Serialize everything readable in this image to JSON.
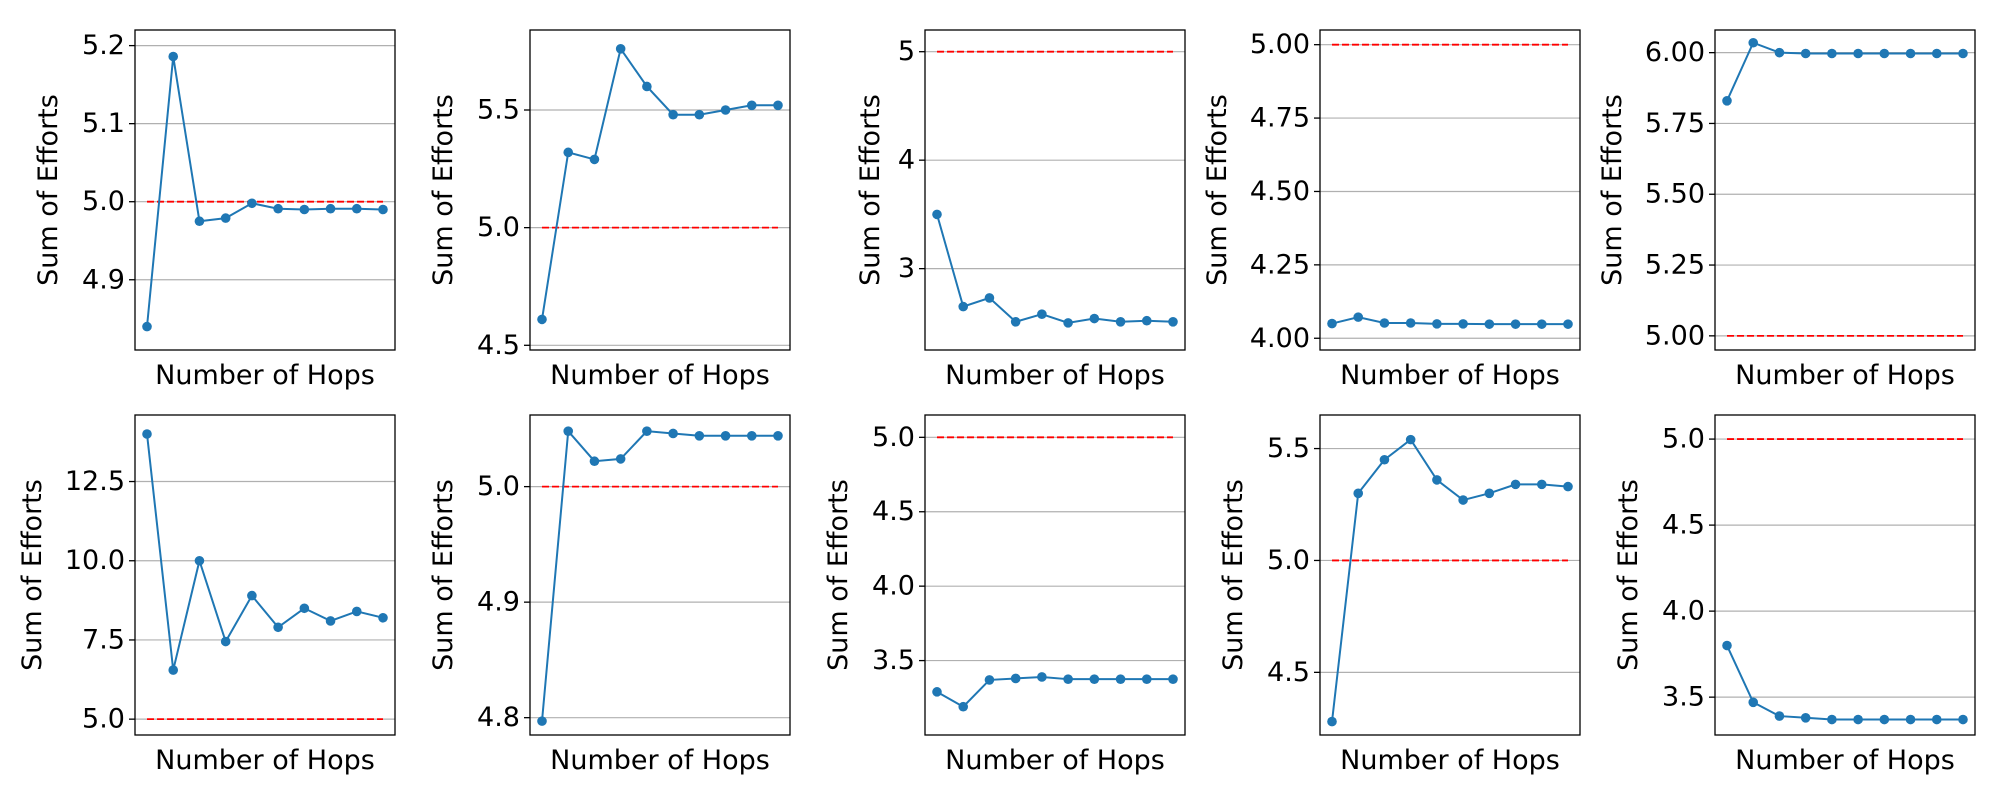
{
  "style": {
    "line_color": "#1f77b4",
    "reference_color": "#ff0000",
    "grid_color": "#b0b0b0",
    "frame_color": "#000000"
  },
  "chart_data": [
    {
      "type": "line",
      "xlabel": "Number of Hops",
      "ylabel": "Sum of Efforts",
      "grid": "horizontal",
      "ylim": [
        4.81,
        5.22
      ],
      "yticks": [
        4.9,
        5.0,
        5.1,
        5.2
      ],
      "ytick_labels": [
        "4.9",
        "5.0",
        "5.1",
        "5.2"
      ],
      "x": [
        1,
        2,
        3,
        4,
        5,
        6,
        7,
        8,
        9,
        10
      ],
      "series": [
        {
          "values": [
            4.84,
            5.186,
            4.975,
            4.979,
            4.998,
            4.991,
            4.99,
            4.991,
            4.991,
            4.99
          ]
        }
      ],
      "reference_line": 5.0
    },
    {
      "type": "line",
      "xlabel": "Number of Hops",
      "ylabel": "Sum of Efforts",
      "grid": "horizontal",
      "ylim": [
        4.48,
        5.84
      ],
      "yticks": [
        4.5,
        5.0,
        5.5
      ],
      "ytick_labels": [
        "4.5",
        "5.0",
        "5.5"
      ],
      "x": [
        1,
        2,
        3,
        4,
        5,
        6,
        7,
        8,
        9,
        10
      ],
      "series": [
        {
          "values": [
            4.61,
            5.32,
            5.29,
            5.76,
            5.6,
            5.48,
            5.48,
            5.5,
            5.52,
            5.52
          ]
        }
      ],
      "reference_line": 5.0
    },
    {
      "type": "line",
      "xlabel": "Number of Hops",
      "ylabel": "Sum of Efforts",
      "grid": "horizontal",
      "ylim": [
        2.25,
        5.2
      ],
      "yticks": [
        3,
        4,
        5
      ],
      "ytick_labels": [
        "3",
        "4",
        "5"
      ],
      "x": [
        1,
        2,
        3,
        4,
        5,
        6,
        7,
        8,
        9,
        10
      ],
      "series": [
        {
          "values": [
            3.5,
            2.65,
            2.73,
            2.51,
            2.58,
            2.5,
            2.54,
            2.51,
            2.52,
            2.51
          ]
        }
      ],
      "reference_line": 5.0
    },
    {
      "type": "line",
      "xlabel": "Number of Hops",
      "ylabel": "Sum of Efforts",
      "grid": "horizontal",
      "ylim": [
        3.96,
        5.05
      ],
      "yticks": [
        4.0,
        4.25,
        4.5,
        4.75,
        5.0
      ],
      "ytick_labels": [
        "4.00",
        "4.25",
        "4.50",
        "4.75",
        "5.00"
      ],
      "x": [
        1,
        2,
        3,
        4,
        5,
        6,
        7,
        8,
        9,
        10
      ],
      "series": [
        {
          "values": [
            4.05,
            4.072,
            4.052,
            4.052,
            4.049,
            4.049,
            4.048,
            4.048,
            4.048,
            4.048
          ]
        }
      ],
      "reference_line": 5.0
    },
    {
      "type": "line",
      "xlabel": "Number of Hops",
      "ylabel": "Sum of Efforts",
      "grid": "horizontal",
      "ylim": [
        4.95,
        6.08
      ],
      "yticks": [
        5.0,
        5.25,
        5.5,
        5.75,
        6.0
      ],
      "ytick_labels": [
        "5.00",
        "5.25",
        "5.50",
        "5.75",
        "6.00"
      ],
      "x": [
        1,
        2,
        3,
        4,
        5,
        6,
        7,
        8,
        9,
        10
      ],
      "series": [
        {
          "values": [
            5.83,
            6.035,
            6.0,
            5.997,
            5.997,
            5.997,
            5.997,
            5.997,
            5.997,
            5.997
          ]
        }
      ],
      "reference_line": 5.0
    },
    {
      "type": "line",
      "xlabel": "Number of Hops",
      "ylabel": "Sum of Efforts",
      "grid": "horizontal",
      "ylim": [
        4.5,
        14.6
      ],
      "yticks": [
        5.0,
        7.5,
        10.0,
        12.5
      ],
      "ytick_labels": [
        "5.0",
        "7.5",
        "10.0",
        "12.5"
      ],
      "x": [
        1,
        2,
        3,
        4,
        5,
        6,
        7,
        8,
        9,
        10
      ],
      "series": [
        {
          "values": [
            14.0,
            6.55,
            10.0,
            7.45,
            8.9,
            7.9,
            8.5,
            8.1,
            8.4,
            8.2
          ]
        }
      ],
      "reference_line": 5.0
    },
    {
      "type": "line",
      "xlabel": "Number of Hops",
      "ylabel": "Sum of Efforts",
      "grid": "horizontal",
      "ylim": [
        4.785,
        5.062
      ],
      "yticks": [
        4.8,
        4.9,
        5.0
      ],
      "ytick_labels": [
        "4.8",
        "4.9",
        "5.0"
      ],
      "x": [
        1,
        2,
        3,
        4,
        5,
        6,
        7,
        8,
        9,
        10
      ],
      "series": [
        {
          "values": [
            4.797,
            5.048,
            5.022,
            5.024,
            5.048,
            5.046,
            5.044,
            5.044,
            5.044,
            5.044
          ]
        }
      ],
      "reference_line": 5.0
    },
    {
      "type": "line",
      "xlabel": "Number of Hops",
      "ylabel": "Sum of Efforts",
      "grid": "horizontal",
      "ylim": [
        3.0,
        5.15
      ],
      "yticks": [
        3.5,
        4.0,
        4.5,
        5.0
      ],
      "ytick_labels": [
        "3.5",
        "4.0",
        "4.5",
        "5.0"
      ],
      "x": [
        1,
        2,
        3,
        4,
        5,
        6,
        7,
        8,
        9,
        10
      ],
      "series": [
        {
          "values": [
            3.29,
            3.19,
            3.37,
            3.38,
            3.39,
            3.375,
            3.375,
            3.375,
            3.375,
            3.375
          ]
        }
      ],
      "reference_line": 5.0
    },
    {
      "type": "line",
      "xlabel": "Number of Hops",
      "ylabel": "Sum of Efforts",
      "grid": "horizontal",
      "ylim": [
        4.22,
        5.65
      ],
      "yticks": [
        4.5,
        5.0,
        5.5
      ],
      "ytick_labels": [
        "4.5",
        "5.0",
        "5.5"
      ],
      "x": [
        1,
        2,
        3,
        4,
        5,
        6,
        7,
        8,
        9,
        10
      ],
      "series": [
        {
          "values": [
            4.28,
            5.3,
            5.45,
            5.54,
            5.36,
            5.27,
            5.3,
            5.34,
            5.34,
            5.33
          ]
        }
      ],
      "reference_line": 5.0
    },
    {
      "type": "line",
      "xlabel": "Number of Hops",
      "ylabel": "Sum of Efforts",
      "grid": "horizontal",
      "ylim": [
        3.28,
        5.14
      ],
      "yticks": [
        3.5,
        4.0,
        4.5,
        5.0
      ],
      "ytick_labels": [
        "3.5",
        "4.0",
        "4.5",
        "5.0"
      ],
      "x": [
        1,
        2,
        3,
        4,
        5,
        6,
        7,
        8,
        9,
        10
      ],
      "series": [
        {
          "values": [
            3.8,
            3.47,
            3.39,
            3.38,
            3.37,
            3.37,
            3.37,
            3.37,
            3.37,
            3.37
          ]
        }
      ],
      "reference_line": 5.0
    }
  ]
}
